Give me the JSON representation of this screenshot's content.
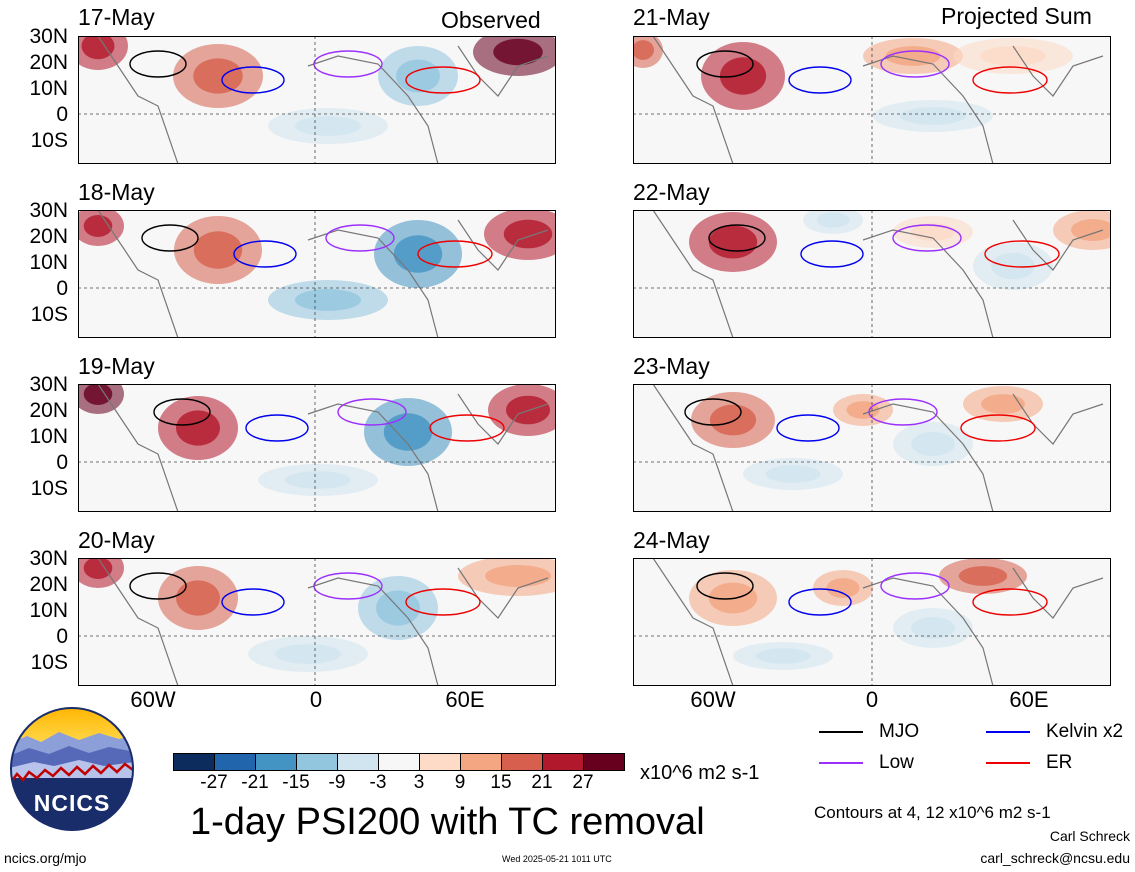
{
  "columns": {
    "left_title": "Observed",
    "right_title": "Projected Sum"
  },
  "panels": {
    "left": [
      "17-May",
      "18-May",
      "19-May",
      "20-May"
    ],
    "right": [
      "21-May",
      "22-May",
      "23-May",
      "24-May"
    ]
  },
  "lat_labels": [
    "30N",
    "20N",
    "10N",
    "0",
    "10S"
  ],
  "lon_labels": [
    "60W",
    "0",
    "60E"
  ],
  "colorbar": {
    "labels": [
      "-27",
      "-21",
      "-15",
      "-9",
      "-3",
      "3",
      "9",
      "15",
      "21",
      "27"
    ],
    "colors": [
      "#0b2c5c",
      "#2166ac",
      "#4393c3",
      "#92c5de",
      "#d1e5f0",
      "#f7f7f7",
      "#fddbc7",
      "#f4a582",
      "#d6604d",
      "#b2182b",
      "#67001f"
    ],
    "units": "x10^6 m2 s-1"
  },
  "title": "1-day PSI200 with TC removal",
  "legend": {
    "items": [
      {
        "label": "MJO",
        "color": "#000000"
      },
      {
        "label": "Kelvin x2",
        "color": "#0000ee"
      },
      {
        "label": "Low",
        "color": "#9b30ff"
      },
      {
        "label": "ER",
        "color": "#ee0000"
      }
    ]
  },
  "contour_note": "Contours at 4, 12 x10^6 m2 s-1",
  "author": "Carl Schreck",
  "email": "carl_schreck@ncsu.edu",
  "logo_text": "NCICS",
  "site": "ncics.org/mjo",
  "timestamp": "Wed 2025-05-21 1011 UTC"
}
